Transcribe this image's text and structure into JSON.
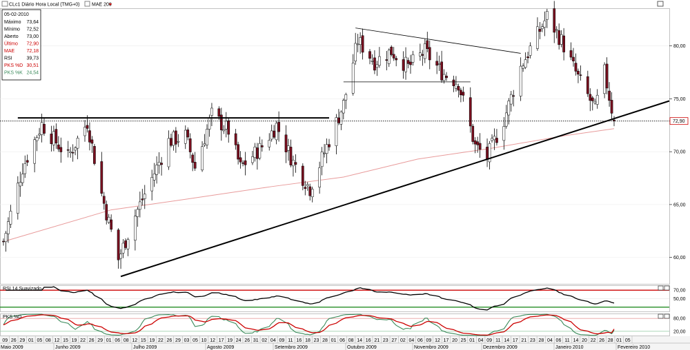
{
  "header": {
    "symbol_text": "CLc1 Diário Hora Local (TMG+0)",
    "ma_label": "MAE 200"
  },
  "info_panel": {
    "date": "05-02-2010",
    "rows": [
      {
        "label": "Máximo",
        "value": "73,64",
        "color": "#000000"
      },
      {
        "label": "Mínimo",
        "value": "72,52",
        "color": "#000000"
      },
      {
        "label": "Aberto",
        "value": "73,00",
        "color": "#000000"
      },
      {
        "label": "Último",
        "value": "72,90",
        "color": "#cc0000"
      },
      {
        "label": "MAE",
        "value": "72,18",
        "color": "#cc0000"
      },
      {
        "label": "RSI",
        "value": "39,73",
        "color": "#000000"
      },
      {
        "label": "PKS %D",
        "value": "30,51",
        "color": "#cc0000"
      },
      {
        "label": "PKS %K",
        "value": "24,54",
        "color": "#3a8a5a"
      }
    ]
  },
  "rsi_label": "RSI 14 Suavizado",
  "stoch_label": "PKS %D",
  "price_axis": {
    "labels": [
      "80,00",
      "75,00",
      "70,00",
      "65,00",
      "60,00"
    ],
    "values": [
      80,
      75,
      70,
      65,
      60
    ],
    "current_label": "72,90",
    "current_value": 72.9
  },
  "rsi_axis": {
    "labels": [
      "70,00",
      "50,00"
    ],
    "values": [
      70,
      50
    ],
    "ylim": [
      20,
      80
    ]
  },
  "stoch_axis": {
    "labels": [
      "80,00",
      "20,00"
    ],
    "values": [
      80,
      20
    ],
    "ylim": [
      0,
      100
    ]
  },
  "x_axis": {
    "day_labels": [
      "09",
      "26",
      "29",
      "01",
      "05",
      "08",
      "12",
      "15",
      "19",
      "22",
      "26",
      "29",
      "01",
      "06",
      "08",
      "12",
      "15",
      "19",
      "22",
      "26",
      "29",
      "03",
      "05",
      "10",
      "12",
      "17",
      "19",
      "24",
      "26",
      "31",
      "02",
      "04",
      "09",
      "11",
      "16",
      "18",
      "23",
      "28",
      "01",
      "06",
      "08",
      "14",
      "16",
      "21",
      "23",
      "27",
      "02",
      "04",
      "06",
      "09",
      "12",
      "17",
      "20",
      "25",
      "01",
      "04",
      "09",
      "11",
      "14",
      "17",
      "21",
      "23",
      "28",
      "04",
      "06",
      "11",
      "14",
      "20",
      "22",
      "26",
      "28",
      "01",
      "05"
    ],
    "month_labels": [
      "Maio 2009",
      "Junho 2009",
      "Julho 2009",
      "Agosto 2009",
      "Setembro 2009",
      "Outubro 2009",
      "Novembro 2009",
      "Dezembro 2009",
      "Janeiro 2010",
      "Fevereiro 2010"
    ]
  },
  "colors": {
    "ma_line": "#e89a9a",
    "rsi_line": "#000000",
    "rsi_upper": "#cc0000",
    "rsi_lower": "#228b22",
    "stoch_d": "#cc0000",
    "stoch_k": "#3a8a5a",
    "candle_down": "#7a1020",
    "candle_up": "#ffffff"
  },
  "chart_data": [
    {
      "type": "candlestick",
      "title": "CLc1 Diário Hora Local (TMG+0)",
      "series_name": "MAE 200",
      "x_range": [
        "2009-05-26",
        "2010-02-05"
      ],
      "ylim": [
        57.5,
        83.5
      ],
      "y_ticks": [
        60,
        65,
        70,
        75,
        80
      ],
      "close_path": [
        {
          "date": "2009-05-26",
          "close": 61.5
        },
        {
          "date": "2009-06-03",
          "close": 68.5
        },
        {
          "date": "2009-06-11",
          "close": 72.6
        },
        {
          "date": "2009-06-22",
          "close": 69.5
        },
        {
          "date": "2009-06-30",
          "close": 72.8
        },
        {
          "date": "2009-07-06",
          "close": 66.0
        },
        {
          "date": "2009-07-13",
          "close": 59.8
        },
        {
          "date": "2009-07-20",
          "close": 64.0
        },
        {
          "date": "2009-07-27",
          "close": 67.5
        },
        {
          "date": "2009-08-03",
          "close": 71.0
        },
        {
          "date": "2009-08-10",
          "close": 71.5
        },
        {
          "date": "2009-08-14",
          "close": 68.5
        },
        {
          "date": "2009-08-21",
          "close": 73.5
        },
        {
          "date": "2009-08-28",
          "close": 72.0
        },
        {
          "date": "2009-09-02",
          "close": 68.5
        },
        {
          "date": "2009-09-11",
          "close": 70.5
        },
        {
          "date": "2009-09-17",
          "close": 72.5
        },
        {
          "date": "2009-09-24",
          "close": 69.0
        },
        {
          "date": "2009-10-01",
          "close": 66.5
        },
        {
          "date": "2009-10-08",
          "close": 70.5
        },
        {
          "date": "2009-10-15",
          "close": 74.5
        },
        {
          "date": "2009-10-21",
          "close": 80.5
        },
        {
          "date": "2009-10-28",
          "close": 78.5
        },
        {
          "date": "2009-11-04",
          "close": 79.5
        },
        {
          "date": "2009-11-11",
          "close": 78.0
        },
        {
          "date": "2009-11-18",
          "close": 79.5
        },
        {
          "date": "2009-11-25",
          "close": 77.5
        },
        {
          "date": "2009-12-02",
          "close": 76.5
        },
        {
          "date": "2009-12-09",
          "close": 70.5
        },
        {
          "date": "2009-12-14",
          "close": 69.5
        },
        {
          "date": "2009-12-21",
          "close": 73.0
        },
        {
          "date": "2009-12-28",
          "close": 78.0
        },
        {
          "date": "2010-01-05",
          "close": 81.5
        },
        {
          "date": "2010-01-08",
          "close": 82.8
        },
        {
          "date": "2010-01-14",
          "close": 80.5
        },
        {
          "date": "2010-01-21",
          "close": 77.0
        },
        {
          "date": "2010-01-28",
          "close": 74.0
        },
        {
          "date": "2010-02-01",
          "close": 77.5
        },
        {
          "date": "2010-02-05",
          "close": 72.9
        }
      ],
      "moving_average": [
        {
          "date": "2009-05-26",
          "value": 61.5
        },
        {
          "date": "2009-07-10",
          "value": 64.5
        },
        {
          "date": "2009-08-10",
          "value": 65.5
        },
        {
          "date": "2009-09-15",
          "value": 66.7
        },
        {
          "date": "2009-10-15",
          "value": 67.6
        },
        {
          "date": "2009-11-15",
          "value": 69.3
        },
        {
          "date": "2009-12-15",
          "value": 70.3
        },
        {
          "date": "2010-01-15",
          "value": 71.5
        },
        {
          "date": "2010-02-05",
          "value": 72.18
        }
      ]
    },
    {
      "type": "line",
      "title": "RSI 14 Suavizado",
      "ylim": [
        20,
        80
      ],
      "reference_lines": [
        70,
        50
      ],
      "last_value": 39.73
    },
    {
      "type": "line",
      "title": "PKS %D",
      "ylim": [
        0,
        100
      ],
      "reference_lines": [
        80,
        20
      ],
      "series": [
        {
          "name": "PKS %D",
          "last_value": 30.51
        },
        {
          "name": "PKS %K",
          "last_value": 24.54
        }
      ]
    }
  ]
}
